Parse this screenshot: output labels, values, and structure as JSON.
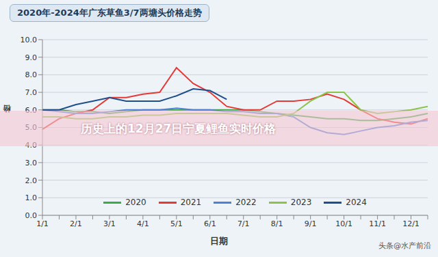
{
  "chart_data": {
    "type": "line",
    "title": "2020年-2024年广东草鱼3/7两塘头价格走势",
    "x_label": "日期",
    "y_label": "价格",
    "annotations": [
      "历史上的12月27日宁夏鲤鱼实时价格",
      "头条@水产前沿"
    ],
    "categories": [
      "1/1",
      null,
      "2/1",
      null,
      "3/1",
      null,
      "4/1",
      null,
      "5/1",
      null,
      "6/1",
      null,
      "7/1",
      null,
      "8/1",
      null,
      "9/1",
      null,
      "10/1",
      null,
      "11/1",
      null,
      "12/1",
      null
    ],
    "series": [
      {
        "name": "2020",
        "color": "#3daa4a",
        "values": [
          6.0,
          6.0,
          5.9,
          5.9,
          5.8,
          5.9,
          6.0,
          6.0,
          6.0,
          6.0,
          6.0,
          6.0,
          6.0,
          5.9,
          5.8,
          5.7,
          5.6,
          5.5,
          5.5,
          5.4,
          5.4,
          5.5,
          5.6,
          5.8
        ]
      },
      {
        "name": "2021",
        "color": "#e53935",
        "values": [
          4.9,
          5.5,
          5.8,
          6.0,
          6.7,
          6.7,
          6.9,
          7.0,
          8.4,
          7.5,
          7.0,
          6.2,
          6.0,
          6.0,
          6.5,
          6.5,
          6.6,
          6.9,
          6.6,
          6.0,
          5.5,
          5.3,
          5.2,
          5.5
        ]
      },
      {
        "name": "2022",
        "color": "#4f7fd6",
        "values": [
          6.0,
          5.9,
          5.8,
          5.8,
          5.9,
          6.0,
          6.0,
          6.0,
          6.1,
          6.0,
          6.0,
          5.9,
          5.9,
          5.8,
          5.8,
          5.6,
          5.0,
          4.7,
          4.6,
          4.8,
          5.0,
          5.1,
          5.3,
          5.4
        ]
      },
      {
        "name": "2023",
        "color": "#8bc34a",
        "values": [
          5.6,
          5.6,
          5.5,
          5.5,
          5.6,
          5.6,
          5.7,
          5.7,
          5.8,
          5.8,
          5.8,
          5.8,
          5.7,
          5.6,
          5.6,
          5.8,
          6.5,
          7.0,
          7.0,
          6.0,
          5.8,
          5.9,
          6.0,
          6.2
        ]
      },
      {
        "name": "2024",
        "color": "#1f4e8c",
        "values": [
          6.0,
          6.0,
          6.3,
          6.5,
          6.7,
          6.5,
          6.5,
          6.5,
          6.8,
          7.2,
          7.1,
          6.6,
          null,
          null,
          null,
          null,
          null,
          null,
          null,
          null,
          null,
          null,
          null,
          null
        ]
      }
    ],
    "ylim": [
      0,
      10
    ],
    "yticks": [
      {
        "value": 0,
        "label": "0.0"
      },
      {
        "value": 1,
        "label": "1.0"
      },
      {
        "value": 2,
        "label": "2.0"
      },
      {
        "value": 3,
        "label": "3.0"
      },
      {
        "value": 4,
        "label": "4.0"
      },
      {
        "value": 5,
        "label": "5.0"
      },
      {
        "value": 6,
        "label": "6.0"
      },
      {
        "value": 7,
        "label": "7.0"
      },
      {
        "value": 8,
        "label": "8.0"
      },
      {
        "value": 9,
        "label": "9.0"
      },
      {
        "value": 10,
        "label": "10.0"
      }
    ],
    "grid": true,
    "legend": "bottom"
  }
}
